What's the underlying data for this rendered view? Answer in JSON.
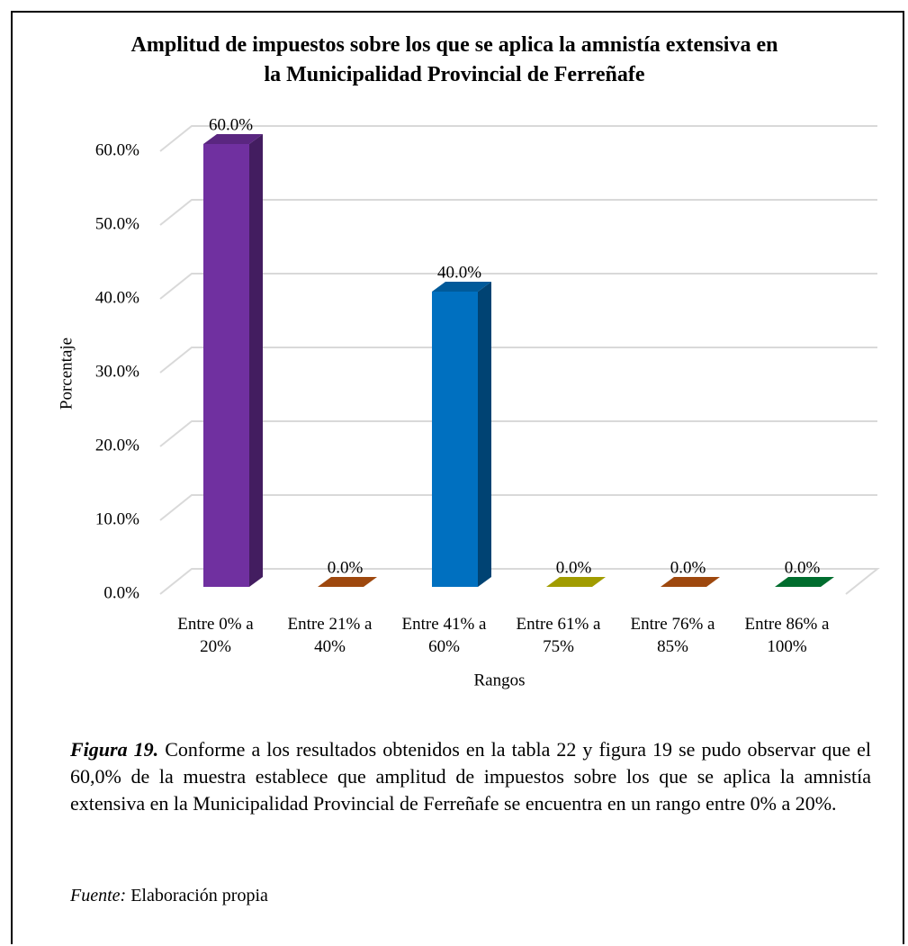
{
  "chart_data": {
    "type": "bar3d",
    "title": "Amplitud de impuestos sobre los que se aplica la amnistía extensiva en la Municipalidad Provincial de Ferreñafe",
    "x_label": "Rangos",
    "y_label": "Porcentaje",
    "categories": [
      "Entre 0% a 20%",
      "Entre 21% a 40%",
      "Entre 41% a 60%",
      "Entre 61% a 75%",
      "Entre 76% a 85%",
      "Entre 86% a 100%"
    ],
    "values": [
      60,
      0,
      40,
      0,
      0,
      0
    ],
    "value_labels": [
      "60.0%",
      "0.0%",
      "40.0%",
      "0.0%",
      "0.0%",
      "0.0%"
    ],
    "colors": [
      "#7030a0",
      "#c55a11",
      "#0070c0",
      "#c9c300",
      "#c55a11",
      "#00883a"
    ],
    "ylim": [
      0,
      60
    ],
    "yticks": [
      {
        "value": 0,
        "label": "0.0%"
      },
      {
        "value": 10,
        "label": "10.0%"
      },
      {
        "value": 20,
        "label": "20.0%"
      },
      {
        "value": 30,
        "label": "30.0%"
      },
      {
        "value": 40,
        "label": "40.0%"
      },
      {
        "value": 50,
        "label": "50.0%"
      },
      {
        "value": 60,
        "label": "60.0%"
      }
    ],
    "grid": true
  },
  "caption": {
    "label": "Figura 19.",
    "text": "Conforme a los resultados obtenidos en la tabla 22 y figura 19 se pudo observar que el 60,0% de la muestra establece que amplitud de impuestos sobre los que se aplica la amnistía extensiva en la Municipalidad Provincial de Ferreñafe se encuentra en un rango entre 0% a 20%."
  },
  "source": {
    "label": "Fuente:",
    "text": "Elaboración propia"
  }
}
